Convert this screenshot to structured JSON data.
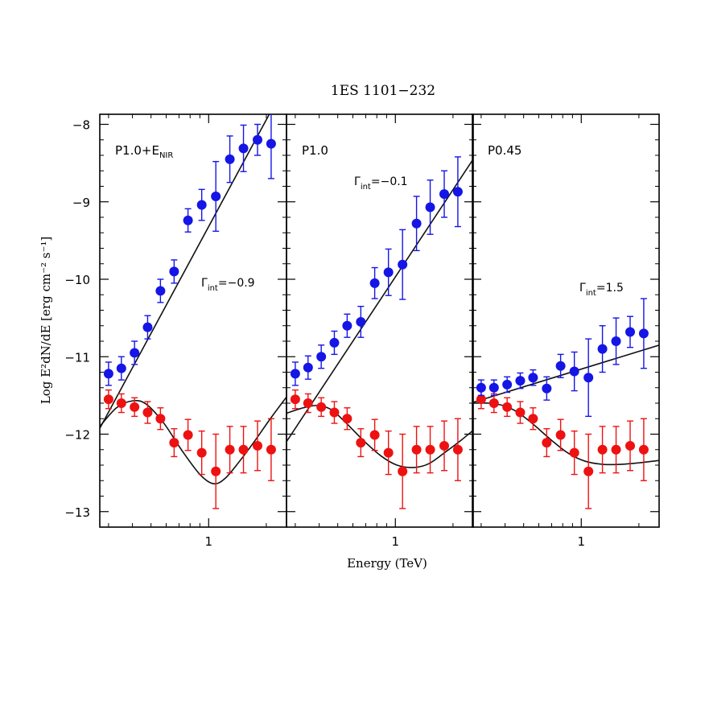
{
  "chart_data": {
    "type": "scatter",
    "title": "1ES 1101−232",
    "xlabel": "Energy (TeV)",
    "ylabel": "Log E²dN/dE  [erg cm⁻² s⁻¹]",
    "x_scale": "log",
    "xlim": [
      0.27,
      2.55
    ],
    "ylim": [
      -13.2,
      -7.87
    ],
    "y_ticks": [
      -8,
      -9,
      -10,
      -11,
      -12,
      -13
    ],
    "y_tick_labels": [
      "−8",
      "−9",
      "−10",
      "−11",
      "−12",
      "−13"
    ],
    "x_ticks": [
      1
    ],
    "x_tick_labels": [
      "1"
    ],
    "colors": {
      "intrinsic": "#1515e6",
      "observed": "#ee1111",
      "fit": "#111111"
    },
    "energies": [
      0.3,
      0.35,
      0.41,
      0.48,
      0.56,
      0.66,
      0.78,
      0.92,
      1.09,
      1.29,
      1.52,
      1.8,
      2.12
    ],
    "observed": {
      "y": [
        -11.55,
        -11.6,
        -11.65,
        -11.72,
        -11.8,
        -12.11,
        -12.01,
        -12.24,
        -12.48,
        -12.2,
        -12.2,
        -12.15,
        -12.2
      ],
      "err": [
        0.12,
        0.12,
        0.12,
        0.14,
        0.14,
        0.18,
        0.2,
        0.28,
        0.48,
        0.3,
        0.3,
        0.32,
        0.4
      ]
    },
    "panels": [
      {
        "label_main": "P1.0+E",
        "label_sub": "NIR",
        "gamma_text": "=−0.9",
        "intrinsic": {
          "y": [
            -11.22,
            -11.15,
            -10.95,
            -10.62,
            -10.15,
            -9.9,
            -9.24,
            -9.04,
            -8.93,
            -8.45,
            -8.31,
            -8.2,
            -8.25
          ],
          "err": [
            0.15,
            0.15,
            0.15,
            0.15,
            0.15,
            0.15,
            0.15,
            0.2,
            0.45,
            0.3,
            0.3,
            0.2,
            0.45
          ]
        },
        "fit_intrinsic": {
          "slope": 4.58,
          "intercept": -9.32
        },
        "fit_observed": [
          [
            0.27,
            -11.9
          ],
          [
            0.33,
            -11.66
          ],
          [
            0.4,
            -11.57
          ],
          [
            0.47,
            -11.61
          ],
          [
            0.58,
            -11.85
          ],
          [
            0.72,
            -12.2
          ],
          [
            0.9,
            -12.52
          ],
          [
            1.06,
            -12.64
          ],
          [
            1.22,
            -12.57
          ],
          [
            1.45,
            -12.35
          ],
          [
            1.75,
            -12.08
          ],
          [
            2.1,
            -11.8
          ],
          [
            2.55,
            -11.52
          ]
        ]
      },
      {
        "label_main": "P1.0",
        "label_sub": "",
        "gamma_text": "=−0.1",
        "intrinsic": {
          "y": [
            -11.22,
            -11.14,
            -11.0,
            -10.82,
            -10.6,
            -10.55,
            -10.05,
            -9.91,
            -9.81,
            -9.28,
            -9.07,
            -8.9,
            -8.87
          ],
          "err": [
            0.15,
            0.15,
            0.15,
            0.15,
            0.15,
            0.2,
            0.2,
            0.3,
            0.45,
            0.35,
            0.35,
            0.3,
            0.45
          ]
        },
        "fit_intrinsic": {
          "slope": 3.74,
          "intercept": -9.97
        },
        "fit_observed": [
          [
            0.27,
            -11.73
          ],
          [
            0.33,
            -11.66
          ],
          [
            0.39,
            -11.63
          ],
          [
            0.46,
            -11.68
          ],
          [
            0.55,
            -11.85
          ],
          [
            0.68,
            -12.08
          ],
          [
            0.84,
            -12.28
          ],
          [
            1.02,
            -12.4
          ],
          [
            1.25,
            -12.43
          ],
          [
            1.5,
            -12.38
          ],
          [
            1.85,
            -12.22
          ],
          [
            2.2,
            -12.08
          ],
          [
            2.55,
            -11.95
          ]
        ]
      },
      {
        "label_main": "P0.45",
        "label_sub": "",
        "gamma_text": "=1.5",
        "intrinsic": {
          "y": [
            -11.4,
            -11.4,
            -11.36,
            -11.31,
            -11.27,
            -11.41,
            -11.12,
            -11.19,
            -11.27,
            -10.9,
            -10.8,
            -10.68,
            -10.7
          ],
          "err": [
            0.1,
            0.1,
            0.1,
            0.1,
            0.1,
            0.15,
            0.15,
            0.25,
            0.5,
            0.3,
            0.3,
            0.2,
            0.45
          ]
        },
        "fit_intrinsic": {
          "slope": 0.76,
          "intercept": -11.16
        },
        "fit_observed": [
          [
            0.27,
            -11.6
          ],
          [
            0.33,
            -11.6
          ],
          [
            0.39,
            -11.63
          ],
          [
            0.46,
            -11.71
          ],
          [
            0.56,
            -11.87
          ],
          [
            0.7,
            -12.08
          ],
          [
            0.86,
            -12.25
          ],
          [
            1.05,
            -12.35
          ],
          [
            1.3,
            -12.39
          ],
          [
            1.6,
            -12.39
          ],
          [
            2.0,
            -12.37
          ],
          [
            2.55,
            -12.34
          ]
        ]
      }
    ]
  }
}
